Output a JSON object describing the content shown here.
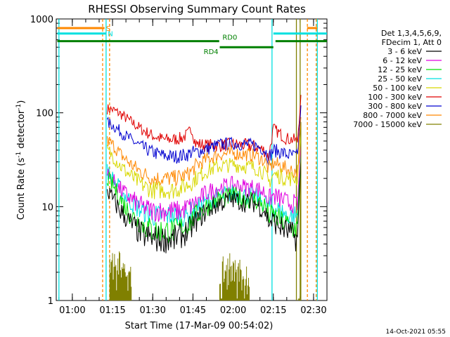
{
  "chart_data": {
    "type": "line",
    "title": "RHESSI Observing Summary Count Rates",
    "xlabel": "Start Time (17-Mar-09 00:54:02)",
    "ylabel": "Count Rate (s",
    "ylabel_sup1": "-1",
    "ylabel_mid": " detector",
    "ylabel_sup2": "-1",
    "ylabel_end": ")",
    "x_unit": "minutes after 00:00 UT",
    "xlim": [
      54,
      155
    ],
    "ylim": [
      1,
      1000
    ],
    "yscale": "log",
    "x_ticks": [
      {
        "v": 60,
        "label": "01:00"
      },
      {
        "v": 75,
        "label": "01:15"
      },
      {
        "v": 90,
        "label": "01:30"
      },
      {
        "v": 105,
        "label": "01:45"
      },
      {
        "v": 120,
        "label": "02:00"
      },
      {
        "v": 135,
        "label": "02:15"
      },
      {
        "v": 150,
        "label": "02:30"
      }
    ],
    "y_ticks": [
      {
        "v": 1,
        "label": "1"
      },
      {
        "v": 10,
        "label": "10"
      },
      {
        "v": 100,
        "label": "100"
      },
      {
        "v": 1000,
        "label": "1000"
      }
    ],
    "legend": {
      "placement": "right",
      "header": [
        "Det 1,3,4,5,6,9,",
        "FDecim 1, Att 0"
      ],
      "entries": [
        {
          "label": "3 - 6 keV",
          "color": "#000000"
        },
        {
          "label": "6 - 12 keV",
          "color": "#e000e0"
        },
        {
          "label": "12 - 25 keV",
          "color": "#00e000"
        },
        {
          "label": "25 - 50 keV",
          "color": "#00e0e0"
        },
        {
          "label": "50 - 100 keV",
          "color": "#d8d800"
        },
        {
          "label": "100 - 300 keV",
          "color": "#e00000"
        },
        {
          "label": "300 - 800 keV",
          "color": "#0000d0"
        },
        {
          "label": "800 - 7000 keV",
          "color": "#ff8800"
        },
        {
          "label": "7000 - 15000 keV",
          "color": "#808000"
        }
      ]
    },
    "series": [
      {
        "color": "#e00000",
        "x": [
          73.0,
          75,
          78,
          82,
          86,
          90,
          94,
          98,
          101,
          103,
          104.5,
          106,
          110,
          115,
          120,
          125,
          128,
          130,
          132,
          133.2,
          135,
          138,
          140,
          142,
          144,
          145.3
        ],
        "y": [
          110,
          108,
          97,
          80,
          66,
          57,
          52,
          52,
          54,
          59,
          68,
          47,
          45,
          45,
          46,
          45,
          44,
          42,
          39,
          33,
          68,
          58,
          53,
          52,
          50,
          155
        ]
      },
      {
        "color": "#0000d0",
        "x": [
          73.0,
          75,
          78,
          82,
          86,
          90,
          94,
          98,
          101,
          103,
          104.5,
          106,
          110,
          115,
          120,
          125,
          128,
          130,
          132,
          133.2,
          135,
          138,
          140,
          142,
          144,
          145.3
        ],
        "y": [
          78,
          74,
          63,
          51,
          43,
          38,
          35,
          34,
          35,
          36,
          38,
          38,
          41,
          46,
          47,
          46,
          45,
          43,
          40,
          33,
          40,
          38,
          36,
          35,
          34,
          120
        ]
      },
      {
        "color": "#ff8800",
        "x": [
          73.0,
          75,
          78,
          82,
          86,
          90,
          94,
          98,
          101,
          103,
          104.5,
          106,
          110,
          115,
          120,
          125,
          128,
          130,
          132,
          133.2,
          135,
          138,
          140,
          142,
          144,
          145.3
        ],
        "y": [
          50,
          46,
          36,
          28,
          23,
          20,
          20,
          20,
          21,
          22,
          24,
          27,
          32,
          36,
          37,
          36,
          35,
          33,
          30,
          25,
          29,
          27,
          25,
          24,
          24,
          90
        ]
      },
      {
        "color": "#d8d800",
        "x": [
          73.0,
          75,
          78,
          82,
          86,
          90,
          94,
          98,
          101,
          103,
          104.5,
          106,
          110,
          115,
          120,
          125,
          128,
          130,
          132,
          133.2,
          135,
          138,
          140,
          142,
          144,
          145.3
        ],
        "y": [
          40,
          35,
          27,
          21,
          17,
          15,
          15,
          15,
          16,
          17,
          18,
          20,
          24,
          27,
          28,
          27,
          26,
          25,
          22,
          18,
          22,
          21,
          20,
          20,
          20,
          60
        ]
      },
      {
        "color": "#00e0e0",
        "x": [
          73.0,
          75,
          78,
          82,
          86,
          90,
          94,
          98,
          101,
          103,
          104.5,
          106,
          110,
          115,
          120,
          125,
          128,
          130,
          132,
          133.2,
          135,
          138,
          140,
          142,
          144,
          145.3
        ],
        "y": [
          24,
          20,
          15,
          11,
          9,
          8,
          8,
          8,
          8,
          8,
          9,
          9,
          11,
          13,
          14,
          13,
          13,
          12,
          11,
          10,
          10,
          9,
          8,
          8,
          8,
          40
        ]
      },
      {
        "color": "#e000e0",
        "x": [
          73.0,
          75,
          78,
          82,
          86,
          90,
          94,
          98,
          101,
          103,
          104.5,
          106,
          110,
          115,
          120,
          125,
          128,
          130,
          132,
          133.2,
          135,
          138,
          140,
          142,
          144,
          145.3
        ],
        "y": [
          22,
          19,
          15,
          12,
          10,
          9,
          9,
          9,
          9,
          10,
          10,
          11,
          14,
          16,
          17,
          16,
          16,
          15,
          14,
          12,
          13,
          12,
          11,
          11,
          10,
          45
        ]
      },
      {
        "color": "#00e000",
        "x": [
          73.0,
          75,
          78,
          82,
          86,
          90,
          94,
          98,
          101,
          103,
          104.5,
          106,
          110,
          115,
          120,
          125,
          128,
          130,
          132,
          133.2,
          135,
          138,
          140,
          142,
          144,
          145.3
        ],
        "y": [
          20,
          17,
          12,
          8,
          6.5,
          5.5,
          5.5,
          5.5,
          6,
          6.5,
          7,
          8,
          10,
          12,
          13,
          12,
          12,
          11,
          10,
          8,
          8,
          7,
          6.5,
          6,
          6,
          35
        ]
      },
      {
        "color": "#000000",
        "x": [
          73.0,
          75,
          78,
          82,
          86,
          90,
          94,
          98,
          101,
          103,
          104.5,
          106,
          110,
          115,
          120,
          125,
          128,
          130,
          132,
          133.2,
          135,
          138,
          140,
          142,
          144,
          145.3
        ],
        "y": [
          15,
          12,
          9,
          6.5,
          5,
          4.5,
          4.5,
          4.5,
          5,
          5.5,
          6,
          7,
          9,
          11,
          12,
          11,
          11,
          10,
          9,
          7,
          7,
          6,
          5.5,
          5,
          4.5,
          30
        ]
      },
      {
        "color": "#808000",
        "x": [
          74.0,
          75,
          76,
          77,
          78,
          79,
          80,
          81,
          82,
          115,
          116,
          117,
          118,
          119,
          120,
          121,
          122,
          123,
          124,
          125,
          126,
          144.0,
          145.3
        ],
        "y": [
          2.8,
          3.2,
          2.3,
          2.8,
          2.1,
          2.5,
          1.8,
          2.0,
          1.4,
          1.5,
          2.6,
          2.1,
          2.8,
          2.3,
          2.6,
          2.0,
          2.5,
          2.1,
          1.7,
          2.3,
          1.4,
          1.0,
          80
        ]
      }
    ],
    "vlines": [
      {
        "x": 55.0,
        "color": "#00e0e0",
        "style": "solid"
      },
      {
        "x": 72.6,
        "color": "#00e0e0",
        "style": "solid"
      },
      {
        "x": 71.3,
        "color": "#ff8800",
        "style": "dashed"
      },
      {
        "x": 73.9,
        "color": "#ff8800",
        "style": "dashed"
      },
      {
        "x": 134.5,
        "color": "#00e0e0",
        "style": "solid"
      },
      {
        "x": 143.6,
        "color": "#808000",
        "style": "solid"
      },
      {
        "x": 145.0,
        "color": "#808000",
        "style": "solid"
      },
      {
        "x": 147.7,
        "color": "#ff8800",
        "style": "dashed"
      },
      {
        "x": 151.4,
        "color": "#00e0e0",
        "style": "solid"
      },
      {
        "x": 151.0,
        "color": "#ff8800",
        "style": "dashed"
      }
    ],
    "flag_bars": [
      {
        "color": "#ff8800",
        "y": 800,
        "segments": [
          [
            54.4,
            72.0
          ],
          [
            147.6,
            151.4
          ]
        ],
        "label": "S",
        "label_x": 72.6
      },
      {
        "color": "#00e0e0",
        "y": 700,
        "segments": [
          [
            54.4,
            72.5
          ],
          [
            135.0,
            155
          ]
        ],
        "label": "N",
        "label_x": 73.2
      },
      {
        "color": "#008000",
        "y": 580,
        "segments": [
          [
            54.4,
            114.8
          ]
        ],
        "label": "RD0",
        "label_x": 116.0,
        "label_pos": "above"
      },
      {
        "color": "#008000",
        "y": 500,
        "segments": [
          [
            115.0,
            135.0
          ]
        ],
        "label": "RD4",
        "label_x": 109.0,
        "label_pos": "below"
      },
      {
        "color": "#008000",
        "y": 580,
        "segments": [
          [
            135.8,
            155
          ]
        ],
        "label": "",
        "label_x": 0
      }
    ],
    "grid": false
  },
  "footer": {
    "timestamp": "14-Oct-2021 05:55"
  }
}
